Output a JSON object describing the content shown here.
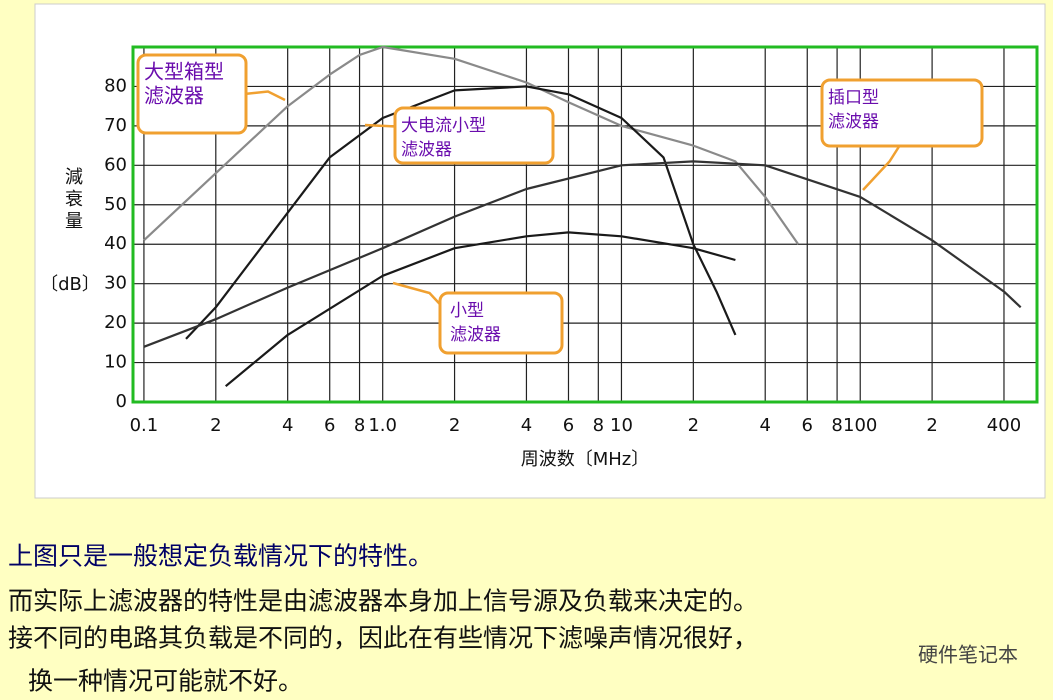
{
  "chart_data": {
    "type": "line",
    "log_x": true,
    "grid": true,
    "y_label": "減衰量",
    "y_unit": "〔dB〕",
    "x_label": "周波数〔MHz〕",
    "xlim": [
      0.09,
      550
    ],
    "ylim": [
      0,
      90
    ],
    "xticks": [
      0.1,
      {
        "value": 0.2,
        "label": "2"
      },
      {
        "value": 0.4,
        "label": "4"
      },
      {
        "value": 0.6,
        "label": "6"
      },
      {
        "value": 0.8,
        "label": "8"
      },
      {
        "value": 1,
        "label": "1.0"
      },
      {
        "value": 2,
        "label": "2"
      },
      {
        "value": 4,
        "label": "4"
      },
      {
        "value": 6,
        "label": "6"
      },
      {
        "value": 8,
        "label": "8"
      },
      10,
      {
        "value": 20,
        "label": "2"
      },
      {
        "value": 40,
        "label": "4"
      },
      {
        "value": 60,
        "label": "6"
      },
      {
        "value": 80,
        "label": "8"
      },
      100,
      {
        "value": 200,
        "label": "2"
      },
      400
    ],
    "yticks": [
      0,
      10,
      20,
      30,
      40,
      50,
      60,
      70,
      80
    ],
    "series": [
      {
        "name": "大型箱型滤波器",
        "color": "#8a8a8a",
        "x": [
          0.1,
          0.2,
          0.4,
          0.6,
          0.8,
          1,
          2,
          4,
          6,
          10,
          20,
          30,
          40,
          55
        ],
        "values": [
          41,
          58,
          75,
          83,
          88,
          90,
          87,
          81,
          76,
          70,
          65,
          61,
          52,
          40
        ]
      },
      {
        "name": "大电流小型滤波器",
        "color": "#1a1a1a",
        "x": [
          0.15,
          0.2,
          0.4,
          0.6,
          1,
          2,
          4,
          6,
          10,
          15,
          20,
          25,
          30
        ],
        "values": [
          16,
          24,
          48,
          62,
          72,
          79,
          80,
          78,
          72,
          62,
          40,
          28,
          17
        ]
      },
      {
        "name": "插口型滤波器",
        "color": "#333333",
        "x": [
          0.1,
          0.2,
          0.4,
          1,
          2,
          4,
          10,
          20,
          40,
          100,
          200,
          400,
          470
        ],
        "values": [
          14,
          21,
          29,
          39,
          47,
          54,
          60,
          61,
          60,
          52,
          41,
          28,
          24
        ]
      },
      {
        "name": "小型滤波器",
        "color": "#1a1a1a",
        "x": [
          0.22,
          0.4,
          1,
          2,
          4,
          6,
          10,
          20,
          30
        ],
        "values": [
          4,
          17,
          32,
          39,
          42,
          43,
          42,
          39,
          36
        ]
      }
    ],
    "annotations": [
      {
        "lines": [
          "大型箱型",
          "滤波器"
        ]
      },
      {
        "lines": [
          "大电流小型",
          "滤波器"
        ]
      },
      {
        "lines": [
          "插口型",
          "滤波器"
        ]
      },
      {
        "lines": [
          "小型",
          "滤波器"
        ]
      }
    ]
  },
  "caption": [
    "上图只是一般想定负载情况下的特性。",
    "而实际上滤波器的特性是由滤波器本身加上信号源及负载来决定的。",
    "接不同的电路其负载是不同的，因此在有些情况下滤噪声情况很好，",
    "换一种情况可能就不好。"
  ],
  "watermark": "硬件笔记本"
}
